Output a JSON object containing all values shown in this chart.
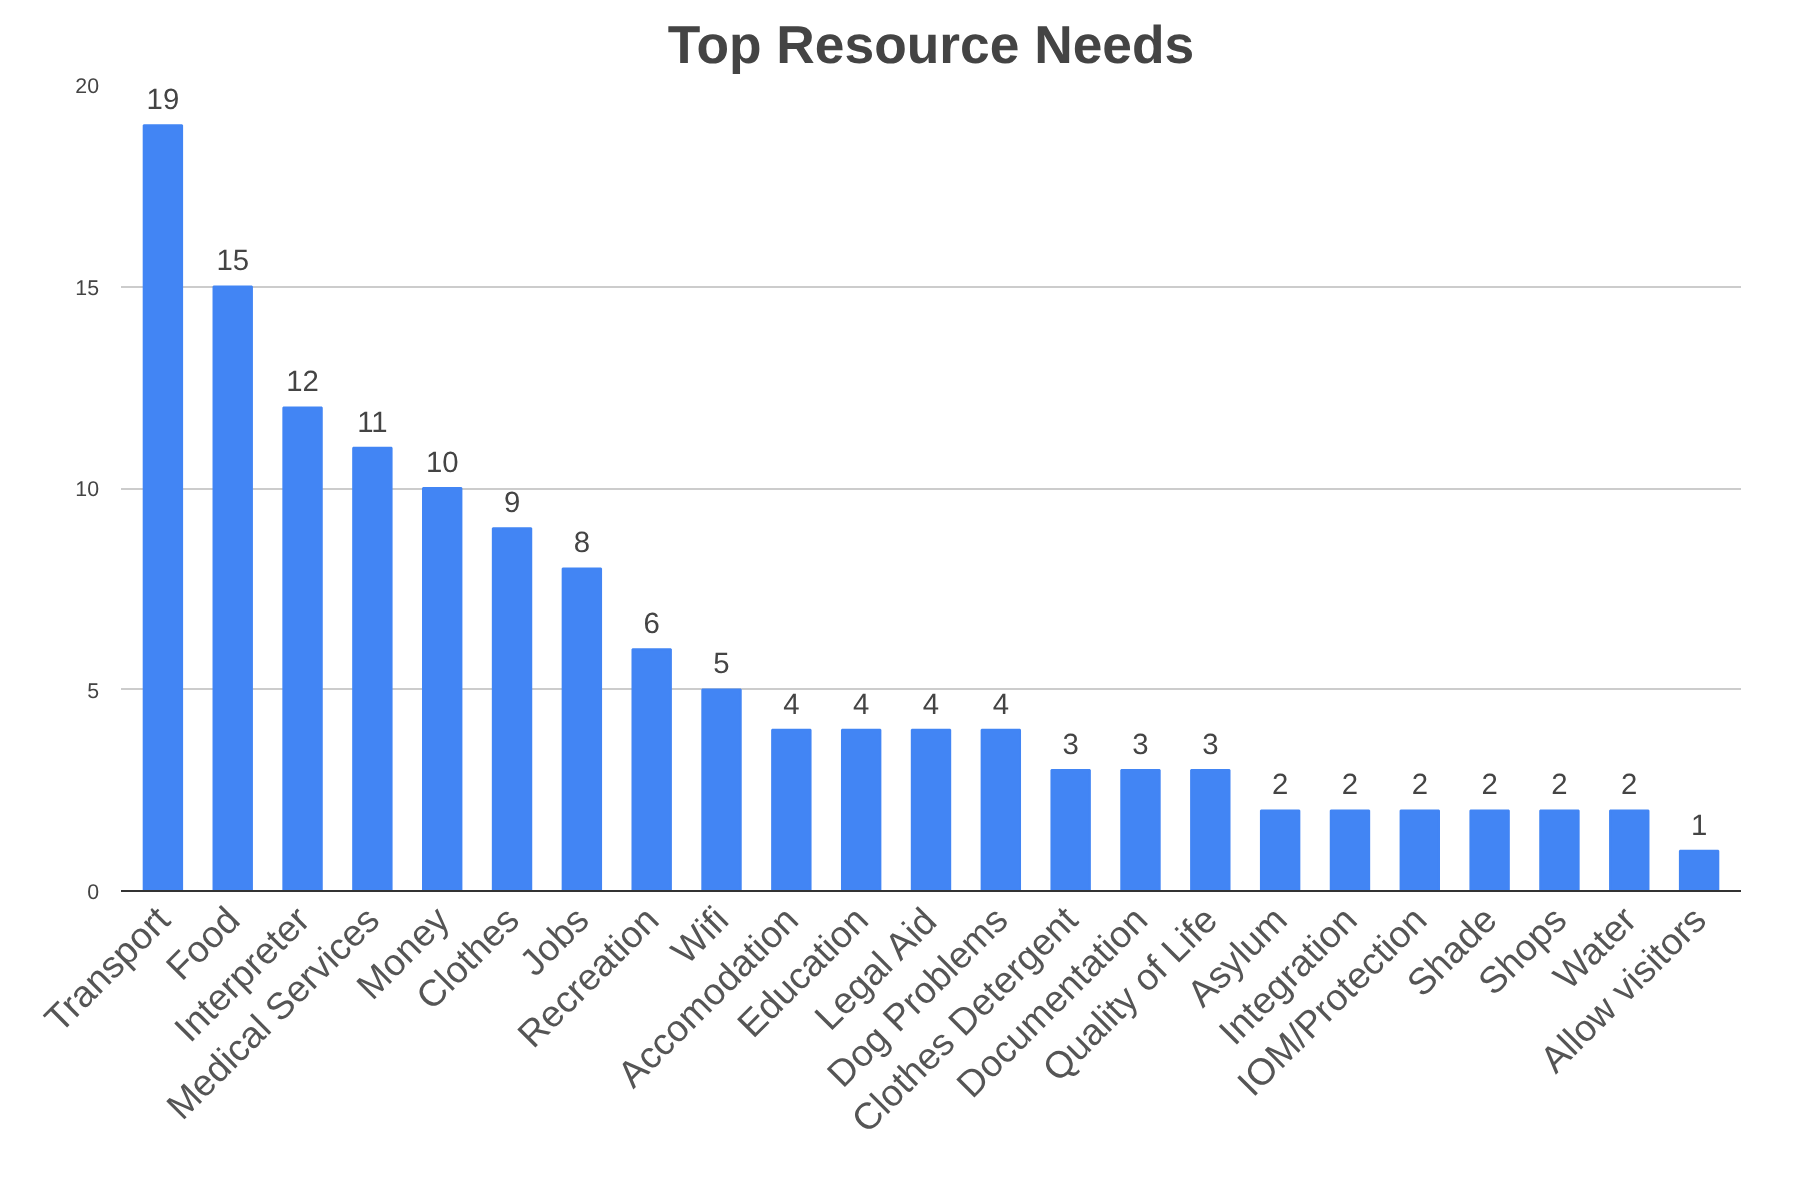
{
  "chart_data": {
    "type": "bar",
    "title": "Top Resource Needs",
    "categories": [
      "Transport",
      "Food",
      "Interpreter",
      "Medical Services",
      "Money",
      "Clothes",
      "Jobs",
      "Recreation",
      "Wifi",
      "Accomodation",
      "Education",
      "Legal Aid",
      "Dog Problems",
      "Clothes Detergent",
      "Documentation",
      "Quality of Life",
      "Asylum",
      "Integration",
      "IOM/Protection",
      "Shade",
      "Shops",
      "Water",
      "Allow visitors"
    ],
    "values": [
      19,
      15,
      12,
      11,
      10,
      9,
      8,
      6,
      5,
      4,
      4,
      4,
      4,
      3,
      3,
      3,
      2,
      2,
      2,
      2,
      2,
      2,
      1
    ],
    "color": "#4285f4",
    "ylim": [
      0,
      20
    ],
    "yticks": [
      0,
      5,
      10,
      15,
      20
    ],
    "grid": "y",
    "data_labels": true
  }
}
